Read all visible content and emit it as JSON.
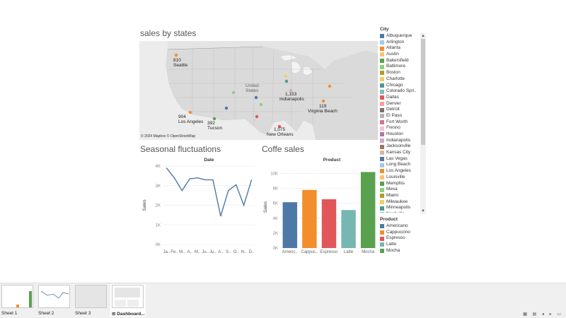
{
  "map": {
    "title": "sales by states",
    "credit": "© 2024 Mapbox © OpenStreetMap",
    "labels": [
      {
        "text": "810",
        "city": "Seattle"
      },
      {
        "text": "904",
        "city": "Los Angeles"
      },
      {
        "text": "392",
        "city": "Tucson"
      },
      {
        "text": "1,153",
        "city": "Indianapolis"
      },
      {
        "text": "119",
        "city": "Virginia Beach"
      },
      {
        "text": "1,075",
        "city": "New Orleans"
      }
    ],
    "place_names": [
      "United",
      "States"
    ]
  },
  "line_chart": {
    "title": "Seasonal fluctuations",
    "header": "Date",
    "ylabel": "Sales",
    "yticks": [
      "0K",
      "1K",
      "2K",
      "3K",
      "4K"
    ],
    "xticks": [
      "Ja..",
      "Fe..",
      "M..",
      "A..",
      "M..",
      "Ju..",
      "Ju..",
      "A..",
      "S..",
      "O..",
      "N..",
      "D.."
    ],
    "color": "#4e79a7"
  },
  "bar_chart": {
    "title": "Coffe sales",
    "header": "Product",
    "ylabel": "Sales",
    "yticks": [
      "0K",
      "2K",
      "4K",
      "6K",
      "8K",
      "10K"
    ],
    "xticks": [
      "Americ..",
      "Cappuc..",
      "Espresso",
      "Latte",
      "Mocha"
    ]
  },
  "chart_data": [
    {
      "type": "line",
      "x": [
        "Jan",
        "Feb",
        "Mar",
        "Apr",
        "May",
        "Jun",
        "Jul",
        "Aug",
        "Sep",
        "Oct",
        "Nov",
        "Dec"
      ],
      "series": [
        {
          "values": [
            3900,
            3400,
            2750,
            3350,
            3400,
            3300,
            3300,
            1450,
            2750,
            3050,
            2000,
            3300
          ]
        }
      ],
      "ylim": [
        0,
        4000
      ],
      "grid": true
    },
    {
      "type": "bar",
      "categories": [
        "Americano",
        "Cappuccino",
        "Espresso",
        "Latte",
        "Mocha"
      ],
      "values": [
        6150,
        7800,
        6550,
        5100,
        10200
      ],
      "colors": [
        "#4e79a7",
        "#f28e2b",
        "#e15759",
        "#76b7b2",
        "#59a14f"
      ],
      "ylim": [
        0,
        11000
      ],
      "grid": true
    }
  ],
  "legend_city": {
    "title": "City",
    "items": [
      {
        "name": "Albuquerque",
        "color": "#4e79a7"
      },
      {
        "name": "Arlington",
        "color": "#a0cbe8"
      },
      {
        "name": "Atlanta",
        "color": "#f28e2b"
      },
      {
        "name": "Austin",
        "color": "#ffbe7d"
      },
      {
        "name": "Bakersfield",
        "color": "#59a14f"
      },
      {
        "name": "Baltimore",
        "color": "#8cd17d"
      },
      {
        "name": "Boston",
        "color": "#b6992d"
      },
      {
        "name": "Charlotte",
        "color": "#f1ce63"
      },
      {
        "name": "Chicago",
        "color": "#499894"
      },
      {
        "name": "Colorado Spri..",
        "color": "#86bcb6"
      },
      {
        "name": "Dallas",
        "color": "#e15759"
      },
      {
        "name": "Denver",
        "color": "#ff9d9a"
      },
      {
        "name": "Detroit",
        "color": "#79706e"
      },
      {
        "name": "El Paso",
        "color": "#bab0ac"
      },
      {
        "name": "Fort Worth",
        "color": "#d37295"
      },
      {
        "name": "Fresno",
        "color": "#fabfd2"
      },
      {
        "name": "Houston",
        "color": "#b07aa1"
      },
      {
        "name": "Indianapolis",
        "color": "#d4a6c8"
      },
      {
        "name": "Jacksonville",
        "color": "#9d7660"
      },
      {
        "name": "Kansas City",
        "color": "#d7b5a6"
      },
      {
        "name": "Las Vegas",
        "color": "#4e79a7"
      },
      {
        "name": "Long Beach",
        "color": "#a0cbe8"
      },
      {
        "name": "Los Angeles",
        "color": "#f28e2b"
      },
      {
        "name": "Louisville",
        "color": "#ffbe7d"
      },
      {
        "name": "Memphis",
        "color": "#59a14f"
      },
      {
        "name": "Mesa",
        "color": "#8cd17d"
      },
      {
        "name": "Miami",
        "color": "#b6992d"
      },
      {
        "name": "Milwaukee",
        "color": "#f1ce63"
      },
      {
        "name": "Minneapolis",
        "color": "#499894"
      },
      {
        "name": "Nashville",
        "color": "#86bcb6"
      }
    ]
  },
  "legend_product": {
    "title": "Product",
    "items": [
      {
        "name": "Americano",
        "color": "#4e79a7"
      },
      {
        "name": "Cappuccino",
        "color": "#f28e2b"
      },
      {
        "name": "Espresso",
        "color": "#e15759"
      },
      {
        "name": "Latte",
        "color": "#76b7b2"
      },
      {
        "name": "Mocha",
        "color": "#59a14f"
      }
    ]
  },
  "tabs": [
    {
      "label": "Sheet 1"
    },
    {
      "label": "Sheet 2"
    },
    {
      "label": "Sheet 3"
    },
    {
      "label": "Dashboard..."
    }
  ]
}
